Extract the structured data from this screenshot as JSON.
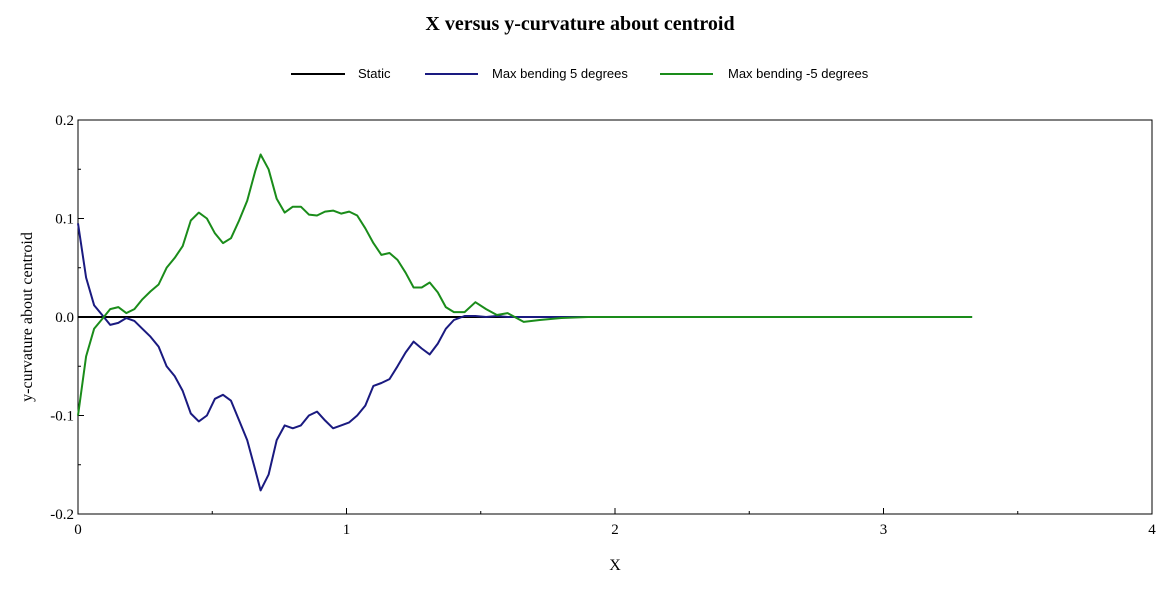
{
  "chart_data": {
    "type": "line",
    "title": "X  versus  y-curvature about centroid",
    "xlabel": "X",
    "ylabel": "y-curvature about centroid",
    "xlim": [
      0,
      4
    ],
    "ylim": [
      -0.2,
      0.2
    ],
    "xticks": [
      0,
      1,
      2,
      3,
      4
    ],
    "xtick_labels": [
      "0",
      "1",
      "2",
      "3",
      "4"
    ],
    "yticks": [
      -0.2,
      -0.1,
      0.0,
      0.1,
      0.2
    ],
    "ytick_labels": [
      "-0.2",
      "-0.1",
      "0.0",
      "0.1",
      "0.2"
    ],
    "grid": false,
    "legend_position": "top-center",
    "series": [
      {
        "name": "Static",
        "color": "#000000",
        "x": [
          0,
          3.33
        ],
        "y": [
          0,
          0
        ]
      },
      {
        "name": "Max bending 5 degrees",
        "color": "#1a1a80",
        "x": [
          0.0,
          0.03,
          0.06,
          0.09,
          0.12,
          0.15,
          0.18,
          0.21,
          0.24,
          0.27,
          0.3,
          0.33,
          0.36,
          0.39,
          0.42,
          0.45,
          0.48,
          0.51,
          0.54,
          0.57,
          0.6,
          0.63,
          0.66,
          0.68,
          0.71,
          0.74,
          0.77,
          0.8,
          0.83,
          0.86,
          0.89,
          0.92,
          0.95,
          0.98,
          1.01,
          1.04,
          1.07,
          1.1,
          1.13,
          1.16,
          1.19,
          1.22,
          1.25,
          1.28,
          1.31,
          1.34,
          1.37,
          1.4,
          1.44,
          1.48,
          1.52,
          1.56,
          1.6,
          1.66,
          1.72,
          1.8,
          1.9,
          2.0,
          2.08
        ],
        "y": [
          0.095,
          0.04,
          0.012,
          0.002,
          -0.008,
          -0.006,
          -0.001,
          -0.004,
          -0.012,
          -0.02,
          -0.03,
          -0.05,
          -0.06,
          -0.075,
          -0.098,
          -0.106,
          -0.1,
          -0.083,
          -0.079,
          -0.085,
          -0.105,
          -0.125,
          -0.155,
          -0.176,
          -0.16,
          -0.125,
          -0.11,
          -0.113,
          -0.11,
          -0.1,
          -0.096,
          -0.105,
          -0.113,
          -0.11,
          -0.107,
          -0.1,
          -0.09,
          -0.07,
          -0.067,
          -0.063,
          -0.05,
          -0.036,
          -0.025,
          -0.032,
          -0.038,
          -0.027,
          -0.012,
          -0.003,
          0.001,
          0.001,
          0.0,
          0.001,
          0.0,
          0.0,
          0.0,
          0.0,
          0.0,
          0.0,
          0.0
        ]
      },
      {
        "name": "Max bending -5 degrees",
        "color": "#1a8c1a",
        "x": [
          0.0,
          0.03,
          0.06,
          0.09,
          0.12,
          0.15,
          0.18,
          0.21,
          0.24,
          0.27,
          0.3,
          0.33,
          0.36,
          0.39,
          0.42,
          0.45,
          0.48,
          0.51,
          0.54,
          0.57,
          0.6,
          0.63,
          0.66,
          0.68,
          0.71,
          0.74,
          0.77,
          0.8,
          0.83,
          0.86,
          0.89,
          0.92,
          0.95,
          0.98,
          1.01,
          1.04,
          1.07,
          1.1,
          1.13,
          1.16,
          1.19,
          1.22,
          1.25,
          1.28,
          1.31,
          1.34,
          1.37,
          1.4,
          1.44,
          1.48,
          1.52,
          1.56,
          1.6,
          1.66,
          1.72,
          1.8,
          1.9,
          2.0,
          2.5,
          3.0,
          3.33
        ],
        "y": [
          -0.1,
          -0.04,
          -0.012,
          -0.002,
          0.008,
          0.01,
          0.004,
          0.008,
          0.018,
          0.026,
          0.033,
          0.05,
          0.06,
          0.072,
          0.098,
          0.106,
          0.1,
          0.085,
          0.075,
          0.08,
          0.098,
          0.118,
          0.148,
          0.165,
          0.15,
          0.12,
          0.106,
          0.112,
          0.112,
          0.104,
          0.103,
          0.107,
          0.108,
          0.105,
          0.107,
          0.103,
          0.09,
          0.075,
          0.063,
          0.065,
          0.058,
          0.045,
          0.03,
          0.03,
          0.035,
          0.025,
          0.01,
          0.005,
          0.005,
          0.015,
          0.008,
          0.002,
          0.004,
          -0.005,
          -0.003,
          -0.001,
          0.0,
          0.0,
          0.0,
          0.0,
          0.0
        ]
      }
    ]
  }
}
